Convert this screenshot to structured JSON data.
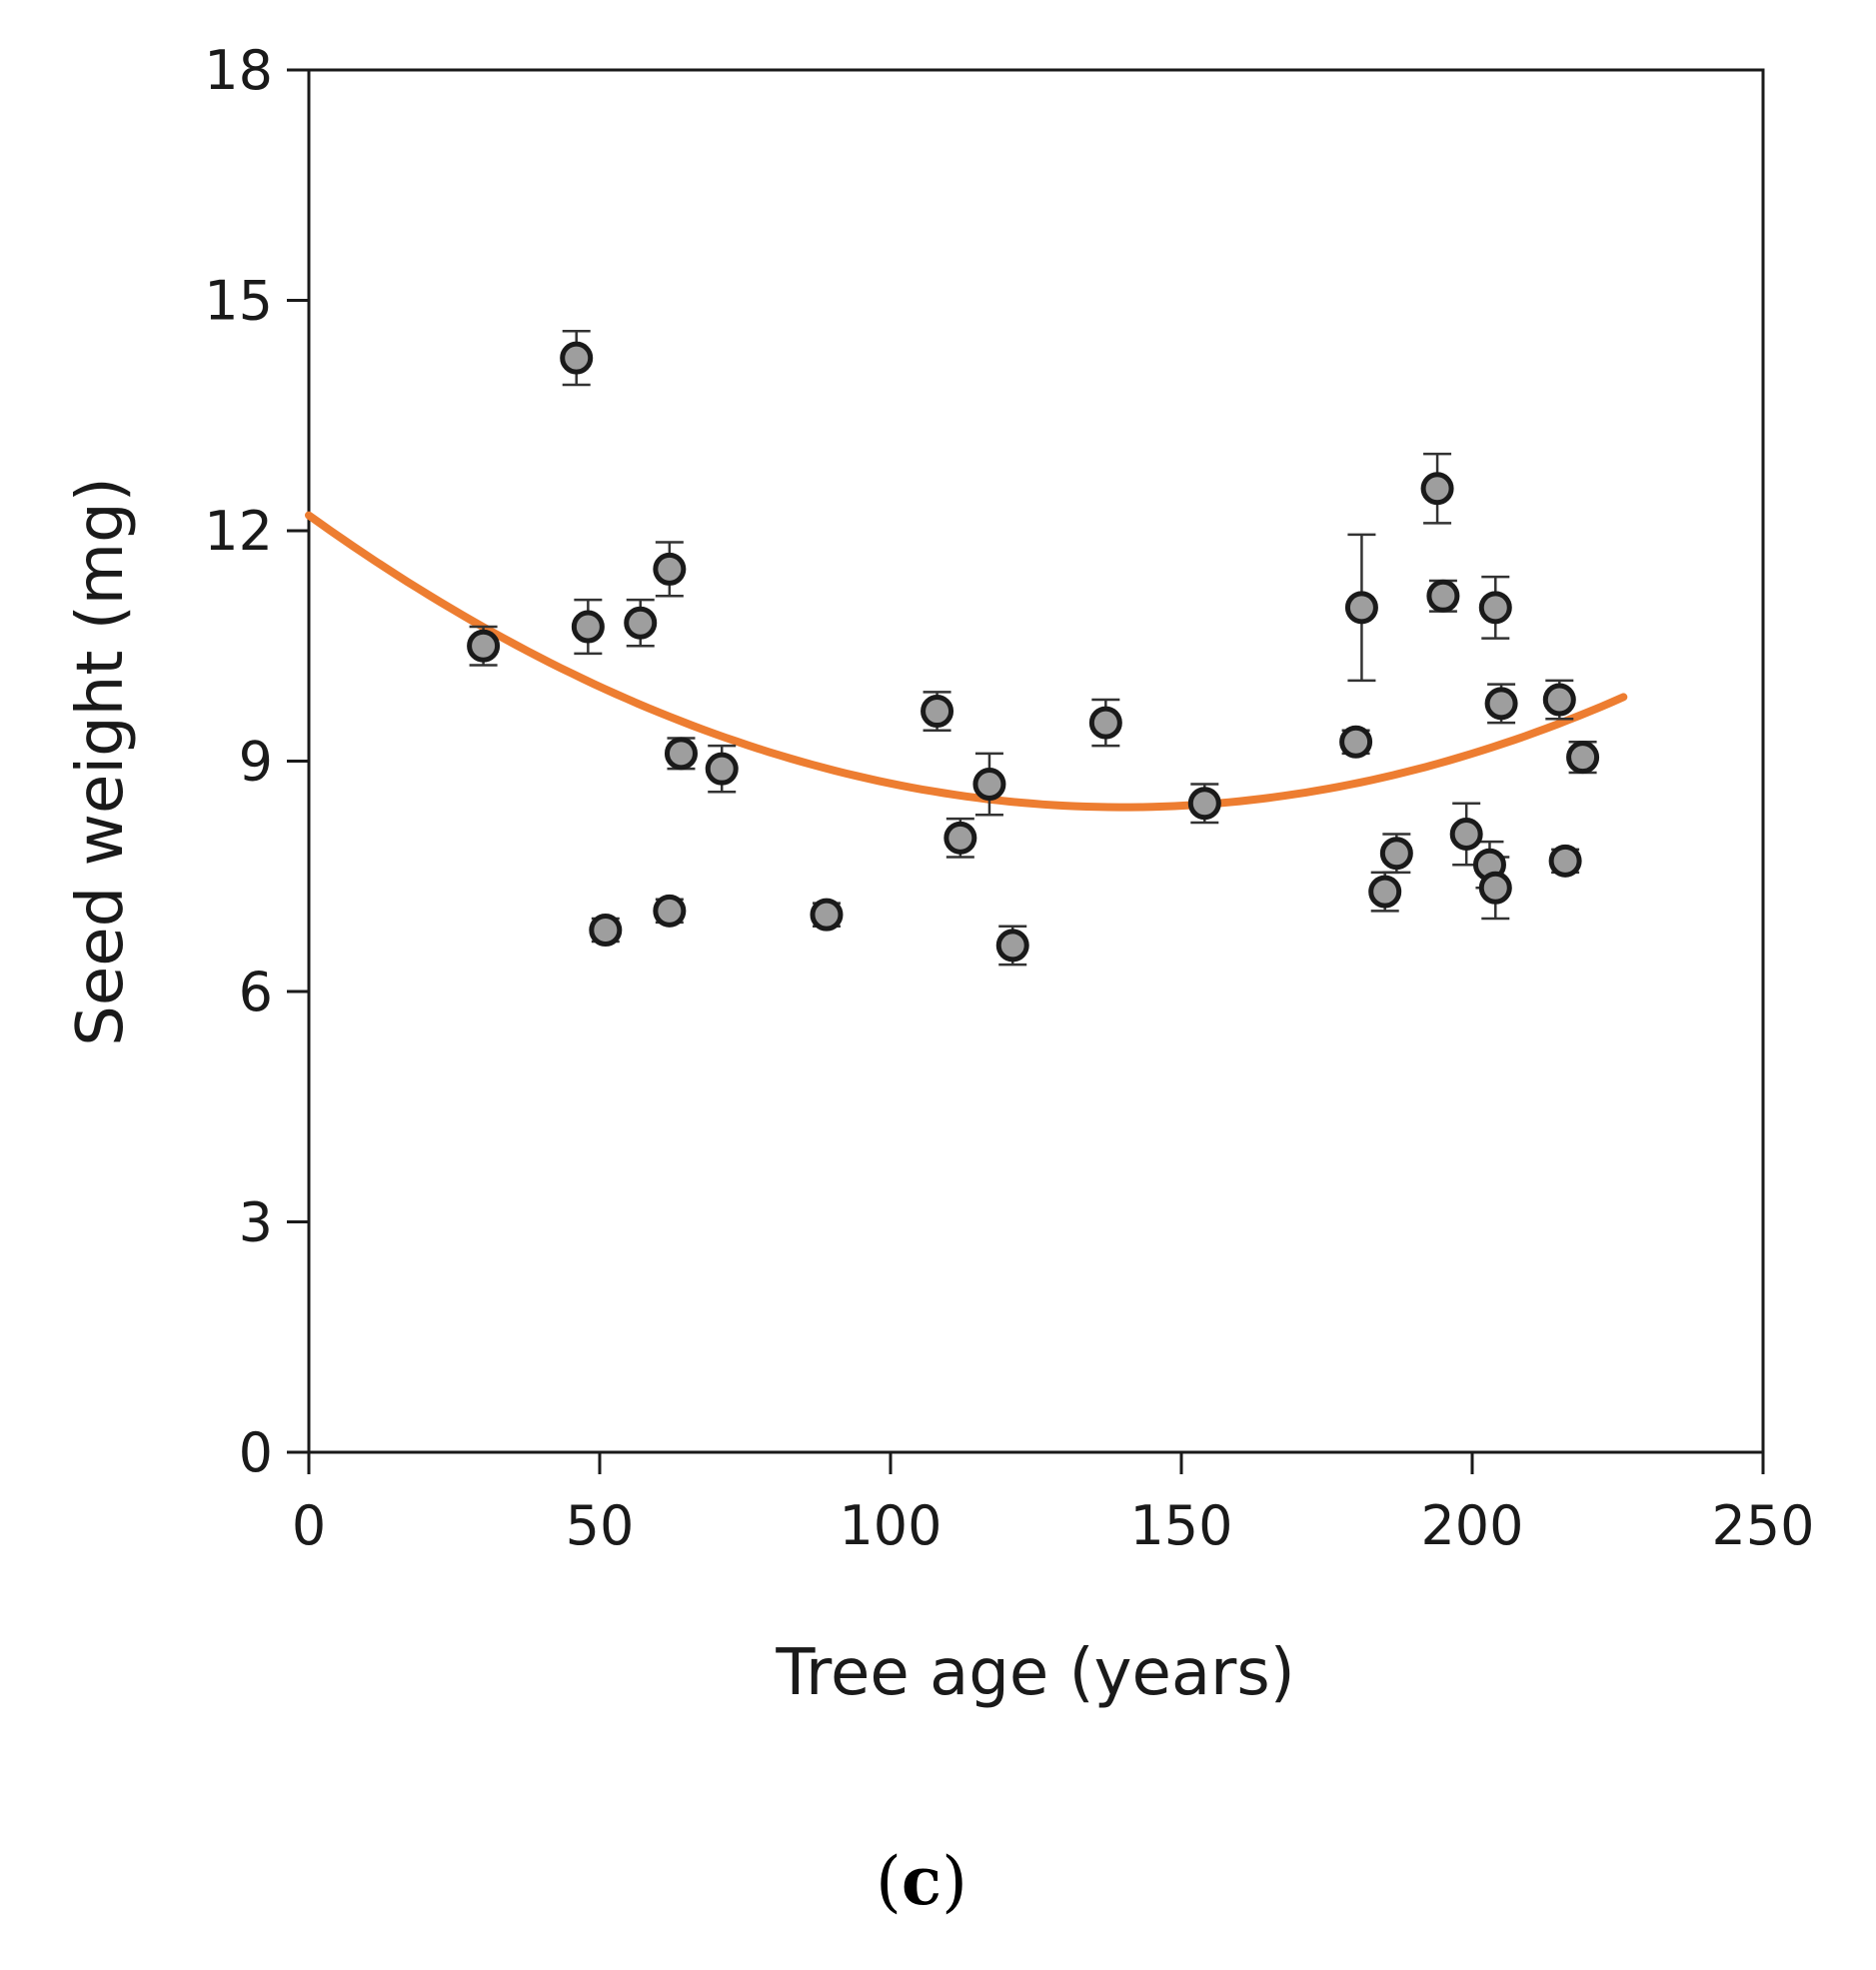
{
  "chart_data": {
    "type": "scatter",
    "title": "",
    "xlabel": "Tree age (years)",
    "ylabel": "Seed weight (mg)",
    "xlim": [
      0,
      250
    ],
    "ylim": [
      0,
      18
    ],
    "xticks": [
      "0",
      "50",
      "100",
      "150",
      "200",
      "250"
    ],
    "yticks": [
      "0",
      "3",
      "6",
      "9",
      "12",
      "15",
      "18"
    ],
    "grid": false,
    "legend": "none",
    "panel_label": {
      "open": "(",
      "letter": "c",
      "close": ")"
    },
    "colors": {
      "marker_fill": "#9e9e9e",
      "marker_edge": "#1a1a1a",
      "error_bar": "#333333",
      "trend": "#ed7d31",
      "axis": "#1a1a1a"
    },
    "series": [
      {
        "name": "Seed weight",
        "kind": "points_with_error",
        "points": [
          {
            "x": 30,
            "y": 10.5,
            "err": 0.25
          },
          {
            "x": 46,
            "y": 14.25,
            "err": 0.35
          },
          {
            "x": 48,
            "y": 10.75,
            "err": 0.35
          },
          {
            "x": 51,
            "y": 6.8,
            "err": 0.15
          },
          {
            "x": 57,
            "y": 10.8,
            "err": 0.3
          },
          {
            "x": 62,
            "y": 11.5,
            "err": 0.35
          },
          {
            "x": 62,
            "y": 7.05,
            "err": 0.15
          },
          {
            "x": 64,
            "y": 9.1,
            "err": 0.2
          },
          {
            "x": 71,
            "y": 8.9,
            "err": 0.3
          },
          {
            "x": 89,
            "y": 7.0,
            "err": 0.15
          },
          {
            "x": 108,
            "y": 9.65,
            "err": 0.25
          },
          {
            "x": 112,
            "y": 8.0,
            "err": 0.25
          },
          {
            "x": 117,
            "y": 8.7,
            "err": 0.4
          },
          {
            "x": 121,
            "y": 6.6,
            "err": 0.25
          },
          {
            "x": 137,
            "y": 9.5,
            "err": 0.3
          },
          {
            "x": 154,
            "y": 8.45,
            "err": 0.25
          },
          {
            "x": 180,
            "y": 9.25,
            "err": 0.15
          },
          {
            "x": 181,
            "y": 11.0,
            "err": 0.95
          },
          {
            "x": 185,
            "y": 7.3,
            "err": 0.25
          },
          {
            "x": 187,
            "y": 7.8,
            "err": 0.25
          },
          {
            "x": 194,
            "y": 12.55,
            "err": 0.45
          },
          {
            "x": 195,
            "y": 11.15,
            "err": 0.2
          },
          {
            "x": 199,
            "y": 8.05,
            "err": 0.4
          },
          {
            "x": 203,
            "y": 7.65,
            "err": 0.3
          },
          {
            "x": 204,
            "y": 11.0,
            "err": 0.4
          },
          {
            "x": 204,
            "y": 7.35,
            "err": 0.4
          },
          {
            "x": 205,
            "y": 9.75,
            "err": 0.25
          },
          {
            "x": 215,
            "y": 9.8,
            "err": 0.25
          },
          {
            "x": 216,
            "y": 7.7,
            "err": 0.15
          },
          {
            "x": 219,
            "y": 9.05,
            "err": 0.2
          }
        ]
      },
      {
        "name": "Quadratic fit",
        "kind": "trend_line",
        "model": "quadratic",
        "coefficients": {
          "a": 0.0001939,
          "b": -0.05429,
          "c": 12.2
        },
        "x_range": [
          0,
          226
        ]
      }
    ]
  }
}
